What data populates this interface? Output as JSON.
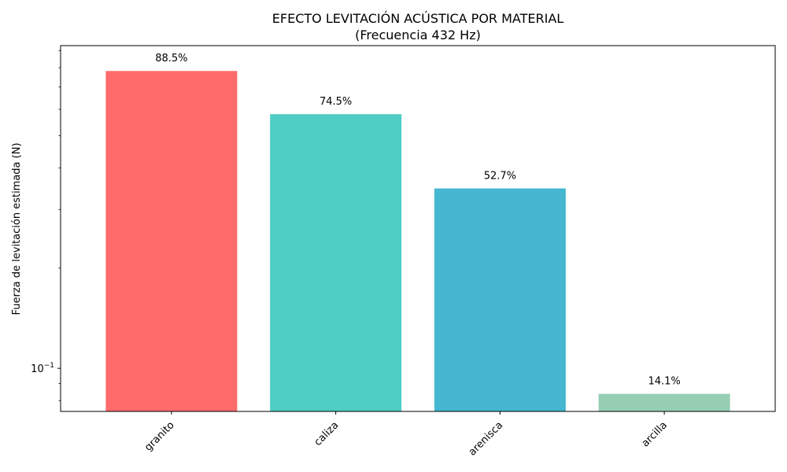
{
  "chart_data": {
    "type": "bar",
    "title": "EFECTO LEVITACIÓN ACÚSTICA POR MATERIAL",
    "subtitle": "(Frecuencia 432 Hz)",
    "xlabel": "",
    "ylabel": "Fuerza de levitación estimada (N)",
    "yscale": "log",
    "ylim": [
      0.0742,
      0.932
    ],
    "yticks": [
      {
        "value": 0.1,
        "base": "10",
        "exp": "−1"
      }
    ],
    "categories": [
      "granito",
      "caliza",
      "arenisca",
      "arcilla"
    ],
    "values": [
      0.782,
      0.58,
      0.347,
      0.0838
    ],
    "labels": [
      "88.5%",
      "74.5%",
      "52.7%",
      "14.1%"
    ],
    "colors": [
      "#ff6b6b",
      "#4ecdc4",
      "#45b7d1",
      "#96ceb4"
    ],
    "grid": false,
    "legend": "none"
  }
}
